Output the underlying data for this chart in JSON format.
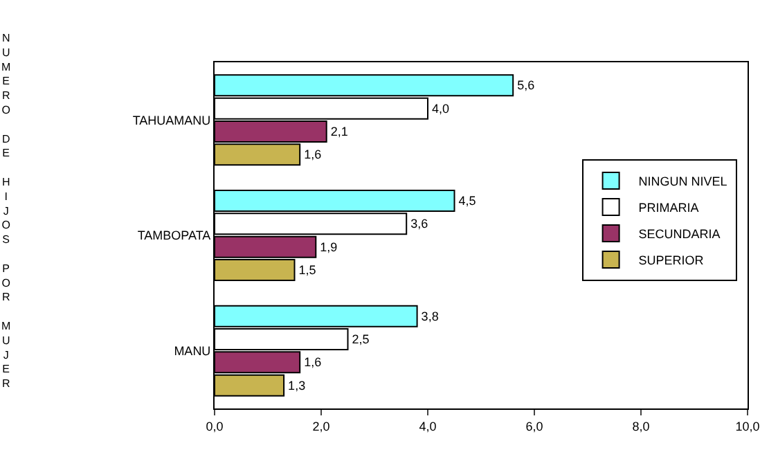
{
  "chart_data": {
    "type": "bar",
    "orientation": "horizontal",
    "ylabel": "NUMERO DE HIJOS POR MUJER",
    "categories": [
      "TAHUAMANU",
      "TAMBOPATA",
      "MANU"
    ],
    "series": [
      {
        "name": "NINGUN NIVEL",
        "color": "#80ffff",
        "values": [
          5.6,
          4.5,
          3.8
        ],
        "value_labels": [
          "5,6",
          "4,5",
          "3,8"
        ]
      },
      {
        "name": "PRIMARIA",
        "color": "#ffffff",
        "values": [
          4.0,
          3.6,
          2.5
        ],
        "value_labels": [
          "4,0",
          "3,6",
          "2,5"
        ]
      },
      {
        "name": "SECUNDARIA",
        "color": "#993366",
        "values": [
          2.1,
          1.9,
          1.6
        ],
        "value_labels": [
          "2,1",
          "1,9",
          "1,6"
        ]
      },
      {
        "name": "SUPERIOR",
        "color": "#c8b450",
        "values": [
          1.6,
          1.5,
          1.3
        ],
        "value_labels": [
          "1,6",
          "1,5",
          "1,3"
        ]
      }
    ],
    "xlim": [
      0,
      10
    ],
    "xticks": [
      {
        "value": 0,
        "label": "0,0"
      },
      {
        "value": 2,
        "label": "2,0"
      },
      {
        "value": 4,
        "label": "4,0"
      },
      {
        "value": 6,
        "label": "6,0"
      },
      {
        "value": 8,
        "label": "8,0"
      },
      {
        "value": 10,
        "label": "10,0"
      }
    ],
    "legend": "right"
  }
}
